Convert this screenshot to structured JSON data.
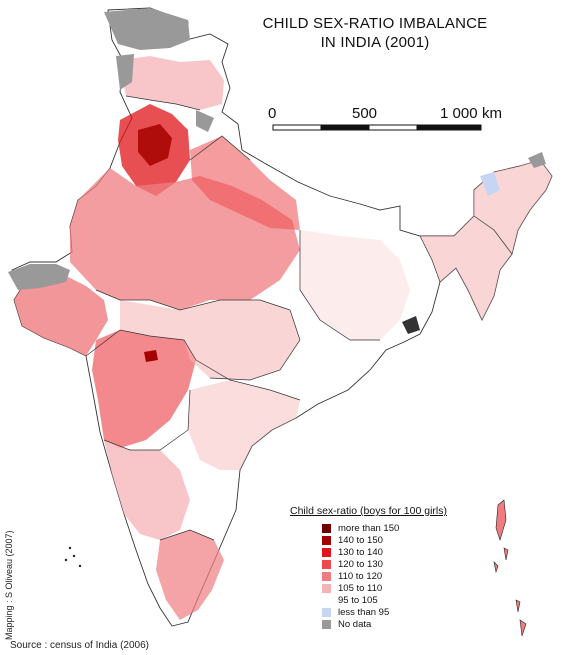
{
  "title": {
    "line1": "CHILD SEX-RATIO IMBALANCE",
    "line2": "IN INDIA (2001)"
  },
  "scale_bar": {
    "ticks": [
      "0",
      "500",
      "1 000"
    ],
    "unit": "km"
  },
  "legend": {
    "title": "Child sex-ratio (boys for 100 girls)",
    "items": [
      {
        "label": "more than 150",
        "color": "#6e0000"
      },
      {
        "label": "140 to 150",
        "color": "#a50000"
      },
      {
        "label": "130 to 140",
        "color": "#e0141a"
      },
      {
        "label": "120 to 130",
        "color": "#ec4a4f"
      },
      {
        "label": "110 to 120",
        "color": "#f07c80"
      },
      {
        "label": "105 to 110",
        "color": "#f6b3b5"
      },
      {
        "label": "95 to 105",
        "color": "#ffffff"
      },
      {
        "label": "less than 95",
        "color": "#c6d6f2"
      },
      {
        "label": "No data",
        "color": "#999999"
      }
    ]
  },
  "credit": "Mapping : S Oliveau (2007)",
  "source": "Source : census of India (2006)"
}
